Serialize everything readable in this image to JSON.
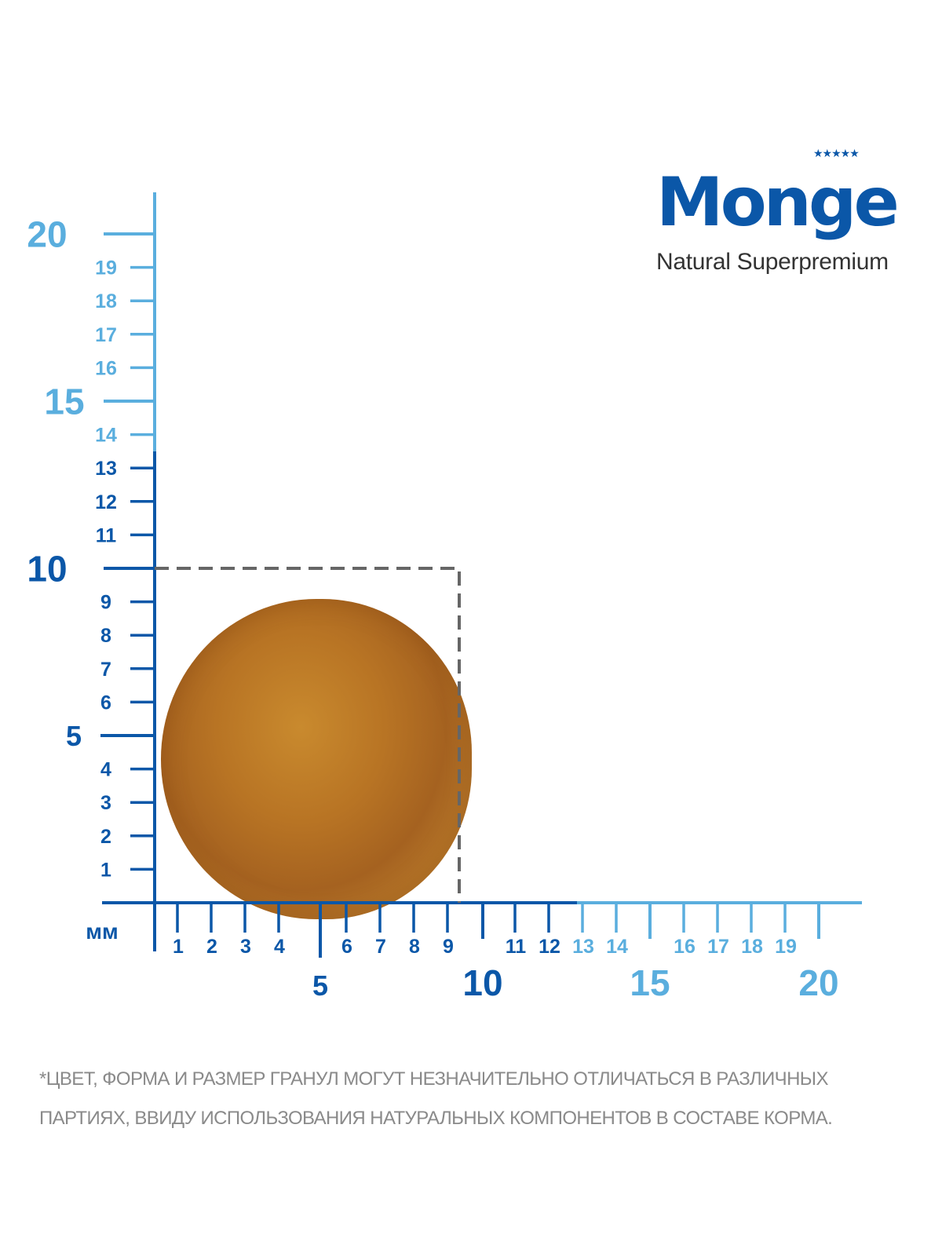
{
  "logo": {
    "brand": "Monge",
    "tagline": "Natural Superpremium"
  },
  "ruler": {
    "unit_label": "мм",
    "colors": {
      "dark": "#0b57a8",
      "light": "#5aaede",
      "dashed_box": "#666666"
    },
    "x_minor_labels": [
      "1",
      "2",
      "3",
      "4",
      "6",
      "7",
      "8",
      "9",
      "11",
      "12",
      "13",
      "14",
      "16",
      "17",
      "18",
      "19"
    ],
    "x_major_labels": [
      "5",
      "10",
      "15",
      "20"
    ],
    "y_minor_labels": [
      "1",
      "2",
      "3",
      "4",
      "6",
      "7",
      "8",
      "9",
      "11",
      "12",
      "13",
      "14",
      "16",
      "17",
      "18",
      "19"
    ],
    "y_major_labels": [
      "5",
      "10",
      "15",
      "20"
    ],
    "kibble_size_mm": 10
  },
  "footnote": "*ЦВЕТ, ФОРМА И РАЗМЕР ГРАНУЛ МОГУТ НЕЗНАЧИТЕЛЬНО ОТЛИЧАТЬСЯ В РАЗЛИЧНЫХ ПАРТИЯХ, ВВИДУ ИСПОЛЬЗОВАНИЯ НАТУРАЛЬНЫХ КОМПОНЕНТОВ В СОСТАВЕ КОРМА."
}
